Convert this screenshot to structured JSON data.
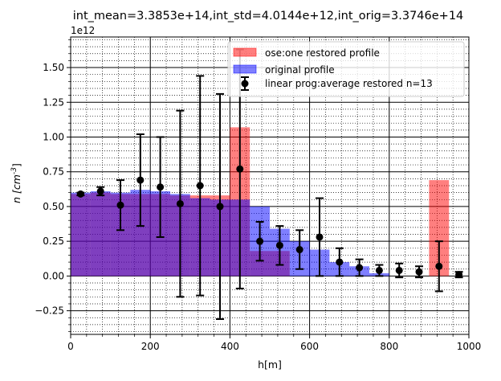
{
  "chart_data": {
    "type": "bar",
    "title": "int_mean=3.3853e+14,int_std=4.0144e+12,int_orig=3.3746e+14",
    "xlabel": "h[m]",
    "ylabel": "n [cm^-3]",
    "ylabel_main": "n [cm",
    "ylabel_sup": "-3",
    "ylabel_end": "]",
    "y_offset_label": "1e12",
    "xlim": [
      0,
      1000
    ],
    "ylim": [
      -0.42,
      1.72
    ],
    "y_scale": 1000000000000.0,
    "x_ticks": [
      0,
      200,
      400,
      600,
      800,
      1000
    ],
    "x_tick_labels": [
      "0",
      "200",
      "400",
      "600",
      "800",
      "1000"
    ],
    "y_ticks": [
      -0.25,
      0.0,
      0.25,
      0.5,
      0.75,
      1.0,
      1.25,
      1.5
    ],
    "y_tick_labels": [
      "−0.25",
      "0.00",
      "0.25",
      "0.50",
      "0.75",
      "1.00",
      "1.25",
      "1.50"
    ],
    "grid": "major solid, minor dotted",
    "legend_placement": "top-right",
    "bar_width": 50,
    "x": [
      25,
      75,
      125,
      175,
      225,
      275,
      325,
      375,
      425,
      475,
      525,
      575,
      625,
      675,
      725,
      775,
      825,
      875,
      925,
      975
    ],
    "series": [
      {
        "name": "ose:one restored profile",
        "kind": "bar",
        "color": "#ff0000",
        "opacity": 0.5,
        "values": [
          0.59,
          0.6,
          0.59,
          0.59,
          0.59,
          0.58,
          0.58,
          0.58,
          1.07,
          0.18,
          0.18,
          0.0,
          0.0,
          0.0,
          0.0,
          0.0,
          0.0,
          0.0,
          0.69,
          0.0
        ]
      },
      {
        "name": "original profile",
        "kind": "bar",
        "color": "#0000ff",
        "opacity": 0.5,
        "values": [
          0.6,
          0.61,
          0.6,
          0.62,
          0.61,
          0.59,
          0.56,
          0.55,
          0.55,
          0.5,
          0.34,
          0.25,
          0.19,
          0.1,
          0.07,
          0.02,
          0.0,
          0.0,
          0.0,
          0.0
        ]
      },
      {
        "name": "linear prog:average restored n=13",
        "kind": "errorbar",
        "color": "#000000",
        "values": [
          0.59,
          0.61,
          0.51,
          0.69,
          0.64,
          0.52,
          0.65,
          0.5,
          0.77,
          0.25,
          0.22,
          0.19,
          0.28,
          0.1,
          0.06,
          0.04,
          0.04,
          0.03,
          0.07,
          0.01
        ],
        "errors": [
          0.01,
          0.03,
          0.18,
          0.33,
          0.36,
          0.67,
          0.79,
          0.81,
          0.86,
          0.14,
          0.14,
          0.14,
          0.28,
          0.1,
          0.06,
          0.04,
          0.05,
          0.04,
          0.18,
          0.02
        ]
      }
    ]
  }
}
